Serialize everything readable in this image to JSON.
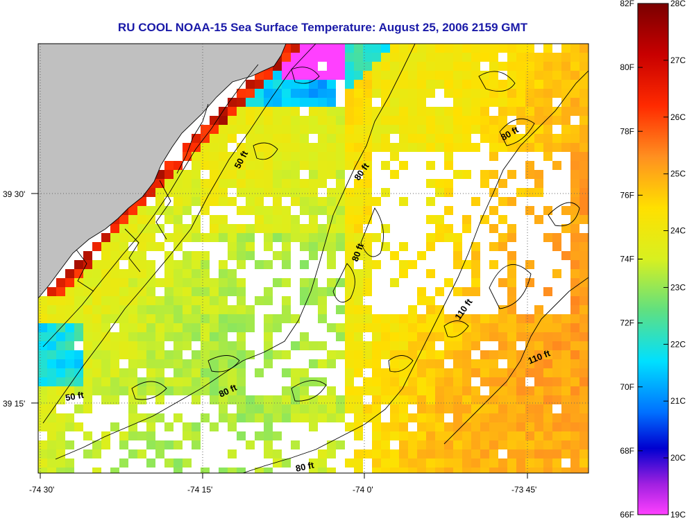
{
  "title": "RU COOL  NOAA-15  Sea Surface Temperature:  August 25, 2006 2159 GMT",
  "lon_ticks": [
    "-74 30'",
    "-74 15'",
    "-74 0'",
    "-73 45'"
  ],
  "lat_ticks": [
    "39 30'",
    "39 15'"
  ],
  "depth_labels": [
    "50 ft",
    "80 ft",
    "80 ft",
    "80 ft",
    "80 ft",
    "80 ft",
    "110 ft",
    "110 ft",
    "50 ft"
  ],
  "colorbar": {
    "f_labels": [
      "82F",
      "80F",
      "78F",
      "76F",
      "74F",
      "72F",
      "70F",
      "68F",
      "66F"
    ],
    "c_labels": [
      "28C",
      "27C",
      "26C",
      "25C",
      "24C",
      "23C",
      "22C",
      "21C",
      "20C",
      "19C"
    ]
  },
  "colors": {
    "land": "#c0c0c0",
    "title": "#1a1aa8"
  }
}
